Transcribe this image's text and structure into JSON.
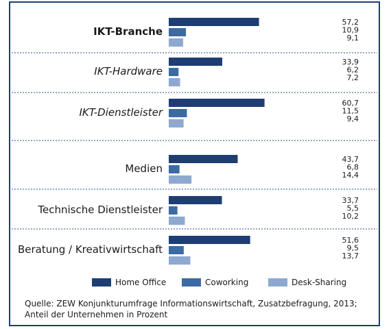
{
  "chart_data": {
    "type": "bar",
    "orientation": "horizontal",
    "categories": [
      "IKT-Branche",
      "IKT-Hardware",
      "IKT-Dienstleister",
      "Medien",
      "Technische Dienstleister",
      "Beratung / Kreativwirtschaft"
    ],
    "category_styles": [
      "bold",
      "italic",
      "italic",
      "normal",
      "normal",
      "normal"
    ],
    "series": [
      {
        "name": "Home Office",
        "color": "#1d3d73",
        "values": [
          57.2,
          33.9,
          60.7,
          43.7,
          33.7,
          51.6
        ],
        "labels": [
          "57,2",
          "33,9",
          "60,7",
          "43,7",
          "33,7",
          "51,6"
        ]
      },
      {
        "name": "Coworking",
        "color": "#3c6aa3",
        "values": [
          10.9,
          6.2,
          11.5,
          6.8,
          5.5,
          9.5
        ],
        "labels": [
          "10,9",
          "6,2",
          "11,5",
          "6,8",
          "5,5",
          "9,5"
        ]
      },
      {
        "name": "Desk-Sharing",
        "color": "#8ea9cf",
        "values": [
          9.1,
          7.2,
          9.4,
          14.4,
          10.2,
          13.7
        ],
        "labels": [
          "9,1",
          "7,2",
          "9,4",
          "14,4",
          "10,2",
          "13,7"
        ]
      }
    ],
    "legend_position": "bottom",
    "grid": false
  },
  "source": {
    "line1": "Quelle: ZEW Konjunkturumfrage Informationswirtschaft, Zusatzbefragung, 2013;",
    "line2": "Anteil der Unternehmen in Prozent"
  }
}
